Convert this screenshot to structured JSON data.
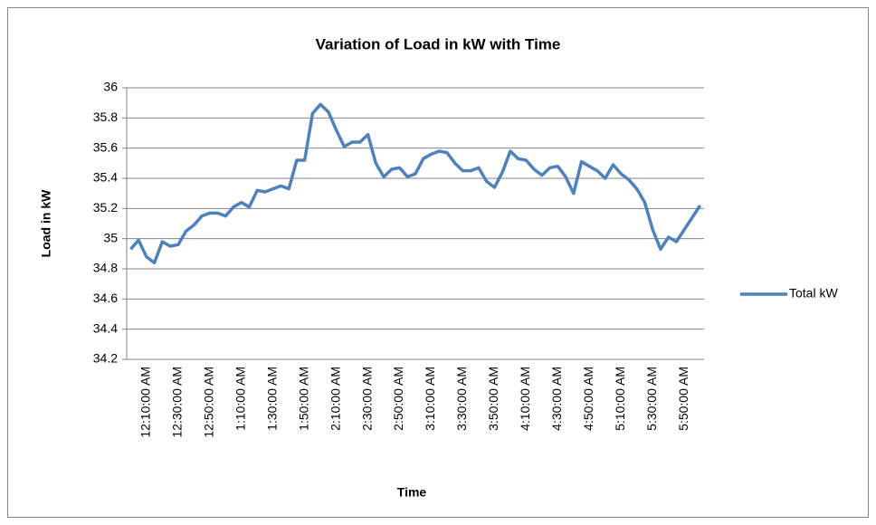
{
  "chart_data": {
    "type": "line",
    "title": "Variation of Load in kW with Time",
    "x_label": "Time",
    "y_label": "Load in kW",
    "categories": [
      null,
      null,
      "12:10:00 AM",
      null,
      null,
      null,
      "12:30:00 AM",
      null,
      null,
      null,
      "12:50:00 AM",
      null,
      null,
      null,
      "1:10:00 AM",
      null,
      null,
      null,
      "1:30:00 AM",
      null,
      null,
      null,
      "1:50:00 AM",
      null,
      null,
      null,
      "2:10:00 AM",
      null,
      null,
      null,
      "2:30:00 AM",
      null,
      null,
      null,
      "2:50:00 AM",
      null,
      null,
      null,
      "3:10:00 AM",
      null,
      null,
      null,
      "3:30:00 AM",
      null,
      null,
      null,
      "3:50:00 AM",
      null,
      null,
      null,
      "4:10:00 AM",
      null,
      null,
      null,
      "4:30:00 AM",
      null,
      null,
      null,
      "4:50:00 AM",
      null,
      null,
      null,
      "5:10:00 AM",
      null,
      null,
      null,
      "5:30:00 AM",
      null,
      null,
      null,
      "5:50:00 AM",
      null,
      null
    ],
    "series": [
      {
        "name": "Total kW",
        "color": "#4f81bd",
        "values": [
          34.93,
          34.99,
          34.88,
          34.84,
          34.98,
          34.95,
          34.96,
          35.05,
          35.09,
          35.15,
          35.17,
          35.17,
          35.15,
          35.21,
          35.24,
          35.21,
          35.32,
          35.31,
          35.33,
          35.35,
          35.33,
          35.52,
          35.52,
          35.83,
          35.89,
          35.84,
          35.72,
          35.61,
          35.64,
          35.64,
          35.69,
          35.5,
          35.41,
          35.46,
          35.47,
          35.41,
          35.43,
          35.53,
          35.56,
          35.58,
          35.57,
          35.5,
          35.45,
          35.45,
          35.47,
          35.38,
          35.34,
          35.44,
          35.58,
          35.53,
          35.52,
          35.46,
          35.42,
          35.47,
          35.48,
          35.41,
          35.3,
          35.51,
          35.48,
          35.45,
          35.4,
          35.49,
          35.43,
          35.39,
          35.33,
          35.24,
          35.06,
          34.93,
          35.01,
          34.98,
          35.06,
          35.14,
          35.22
        ]
      }
    ],
    "ylim": [
      34.2,
      36
    ],
    "yticks": [
      34.2,
      34.4,
      34.6,
      34.8,
      35,
      35.2,
      35.4,
      35.6,
      35.8,
      36
    ],
    "grid": true,
    "legend": "right"
  }
}
